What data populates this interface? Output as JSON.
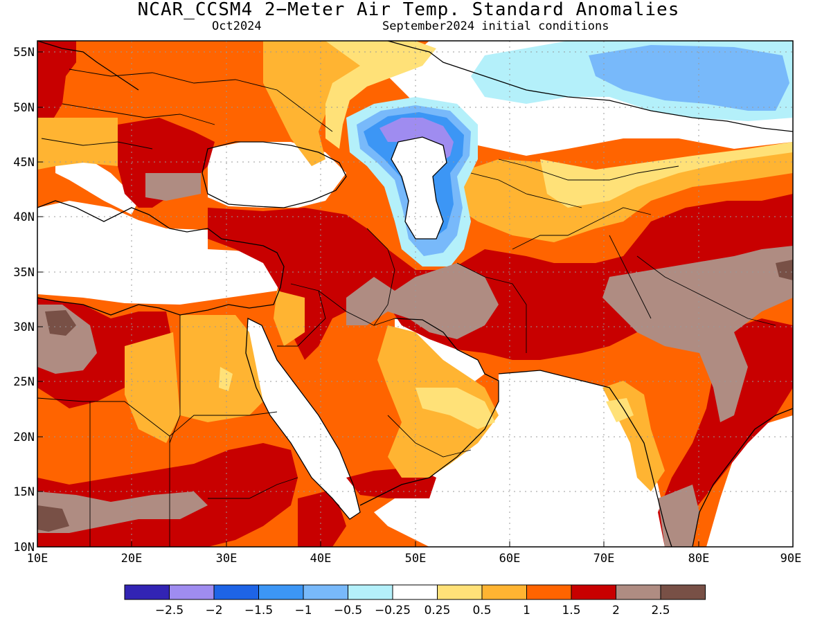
{
  "title": "NCAR_CCSM4 2−Meter Air Temp. Standard Anomalies",
  "subtitle_left": "Oct2024",
  "subtitle_right": "September2024 initial conditions",
  "map": {
    "lon_range": [
      10,
      90
    ],
    "lat_range": [
      10,
      56
    ],
    "x_ticks": [
      "10E",
      "20E",
      "30E",
      "40E",
      "50E",
      "60E",
      "70E",
      "80E",
      "90E"
    ],
    "y_ticks": [
      "55N",
      "50N",
      "45N",
      "40N",
      "35N",
      "30N",
      "25N",
      "20N",
      "15N",
      "10N"
    ],
    "grid": true
  },
  "colorbar": {
    "colors": [
      "#3224b4",
      "#9f8cf0",
      "#1e64e6",
      "#3c96f5",
      "#78b9fa",
      "#b4f0fa",
      "#ffffff",
      "#ffe178",
      "#ffb432",
      "#ff6400",
      "#c80000",
      "#af8c82",
      "#785046"
    ],
    "labels": [
      "−2.5",
      "−2",
      "−1.5",
      "−1",
      "−0.5",
      "−0.25",
      "0.25",
      "0.5",
      "1",
      "1.5",
      "2",
      "2.5"
    ]
  }
}
